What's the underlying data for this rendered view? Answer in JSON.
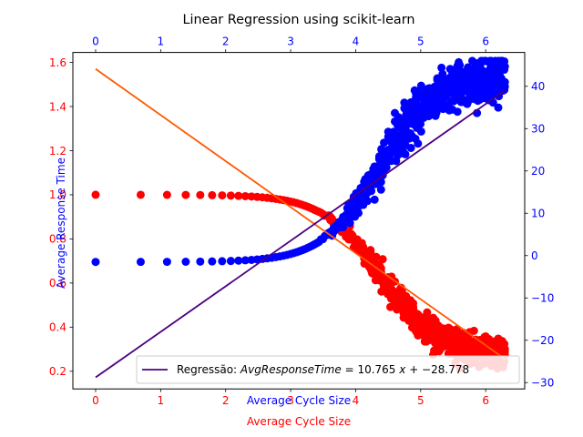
{
  "chart_data": {
    "type": "scatter",
    "title": "Linear Regression using scikit-learn",
    "xlabel": "Average Cycle Size",
    "ylabel": "Average Response Time",
    "grid": false,
    "legend_placement": "lower-right",
    "x_range": [
      -0.35,
      6.6
    ],
    "x_ticks": [
      "0",
      "1",
      "2",
      "3",
      "4",
      "5",
      "6"
    ],
    "left_axis": {
      "ylim": [
        0.12,
        1.645
      ],
      "ticks": [
        "0.2",
        "0.4",
        "0.6",
        "0.8",
        "1.0",
        "1.2",
        "1.4",
        "1.6"
      ],
      "color": "#ff0000"
    },
    "right_axis": {
      "ylim": [
        -31.5,
        48
      ],
      "ticks": [
        "−30",
        "−20",
        "−10",
        "0",
        "10",
        "20",
        "30",
        "40"
      ],
      "color": "#0000ff"
    },
    "top_axis": {
      "ticks": [
        "0",
        "1",
        "2",
        "3",
        "4",
        "5",
        "6"
      ],
      "color": "#0000ff"
    },
    "series": [
      {
        "axis": "left",
        "kind": "scatter",
        "color": "#ff0000",
        "description": "response-time points, ~1.0 until x≈3.6 then falling to ~0.15–0.5"
      },
      {
        "axis": "right",
        "kind": "scatter",
        "color": "#0000ff",
        "description": "points near 0 until x≈3.4 then rising to ~10–46"
      },
      {
        "axis": "left",
        "kind": "line",
        "color": "#ff5a00",
        "x": [
          0,
          6.3
        ],
        "y": [
          1.57,
          0.255
        ]
      },
      {
        "axis": "right",
        "kind": "line",
        "name": "Regressão: $AvgResponseTime = 10.765\\ x + -28.778$",
        "color": "#4b0082",
        "x": [
          0,
          6.3
        ],
        "y": [
          -28.778,
          39.04
        ]
      }
    ],
    "legend": {
      "prefix": "Regressão: ",
      "formula": "AvgResponseTime",
      "equals": " = 10.765 ",
      "xvar": "x",
      "tail": " + −28.778"
    }
  }
}
